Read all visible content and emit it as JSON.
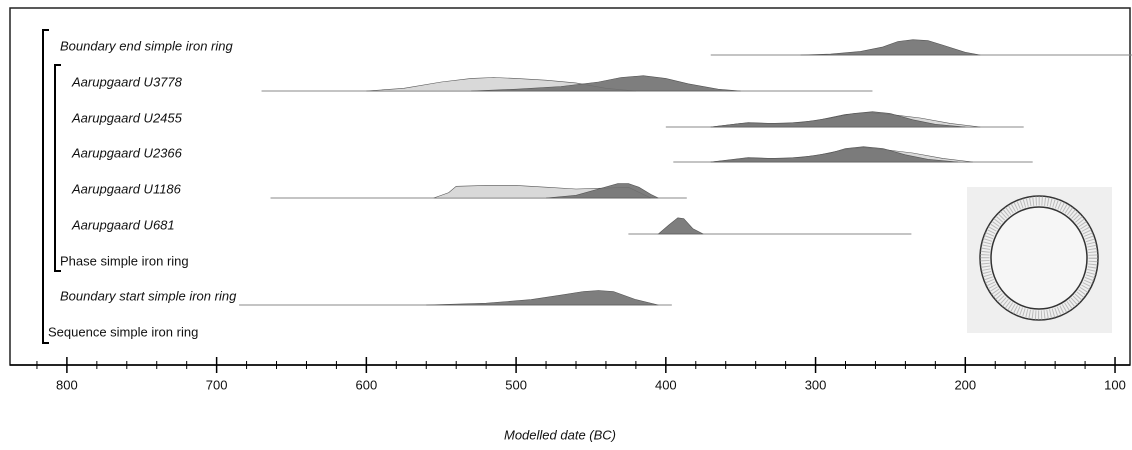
{
  "chart_data": {
    "type": "oxcal",
    "xlabel": "Modelled date (BC)",
    "xlim": [
      838,
      90
    ],
    "xticks": [
      800,
      700,
      600,
      500,
      400,
      300,
      200,
      100
    ],
    "xminorticks": [
      820,
      780,
      760,
      740,
      720,
      680,
      660,
      640,
      620,
      580,
      560,
      540,
      520,
      480,
      460,
      440,
      420,
      380,
      360,
      340,
      320,
      280,
      260,
      240,
      220,
      180,
      160,
      140,
      120
    ],
    "prior_color": "#d9d9d9",
    "posterior_color": "#707070",
    "sequence_label": "Sequence simple iron ring",
    "phase_label": "Phase simple iron ring",
    "rows": [
      {
        "label": "Boundary end simple iron ring",
        "range": [
          370,
          88
        ],
        "posterior": {
          "x": [
            310,
            290,
            270,
            255,
            245,
            235,
            225,
            215,
            200,
            190
          ],
          "y": [
            0,
            0.05,
            0.2,
            0.45,
            0.75,
            0.85,
            0.8,
            0.55,
            0.15,
            0
          ]
        }
      },
      {
        "label": "Aarupgaard U3778",
        "range": [
          670,
          262
        ],
        "prior": {
          "x": [
            600,
            575,
            550,
            530,
            515,
            500,
            480,
            460,
            440,
            420
          ],
          "y": [
            0,
            0.15,
            0.5,
            0.7,
            0.75,
            0.7,
            0.6,
            0.45,
            0.15,
            0
          ]
        },
        "posterior": {
          "x": [
            530,
            500,
            470,
            445,
            430,
            415,
            400,
            385,
            365,
            350
          ],
          "y": [
            0,
            0.1,
            0.25,
            0.5,
            0.75,
            0.85,
            0.7,
            0.4,
            0.1,
            0
          ]
        }
      },
      {
        "label": "Aarupgaard U2455",
        "range": [
          400,
          161
        ],
        "prior": {
          "x": [
            370,
            350,
            340,
            320,
            300,
            280,
            265,
            250,
            230,
            210,
            190
          ],
          "y": [
            0,
            0.2,
            0.2,
            0.2,
            0.35,
            0.7,
            0.8,
            0.7,
            0.5,
            0.2,
            0
          ]
        },
        "posterior": {
          "x": [
            370,
            345,
            330,
            310,
            290,
            275,
            262,
            250,
            235,
            220,
            200
          ],
          "y": [
            0,
            0.25,
            0.2,
            0.25,
            0.5,
            0.75,
            0.85,
            0.75,
            0.4,
            0.15,
            0
          ]
        }
      },
      {
        "label": "Aarupgaard U2366",
        "range": [
          395,
          155
        ],
        "prior": {
          "x": [
            370,
            345,
            335,
            320,
            300,
            280,
            268,
            255,
            235,
            215,
            195
          ],
          "y": [
            0,
            0.2,
            0.2,
            0.2,
            0.35,
            0.7,
            0.8,
            0.7,
            0.5,
            0.2,
            0
          ]
        },
        "posterior": {
          "x": [
            370,
            345,
            330,
            310,
            290,
            280,
            268,
            255,
            240,
            225,
            205
          ],
          "y": [
            0,
            0.25,
            0.2,
            0.25,
            0.5,
            0.75,
            0.85,
            0.75,
            0.4,
            0.15,
            0
          ]
        }
      },
      {
        "label": "Aarupgaard U1186",
        "range": [
          664,
          386
        ],
        "prior": {
          "x": [
            555,
            545,
            540,
            520,
            500,
            480,
            460,
            440,
            425,
            410
          ],
          "y": [
            0,
            0.3,
            0.65,
            0.7,
            0.7,
            0.6,
            0.5,
            0.55,
            0.6,
            0
          ]
        },
        "posterior": {
          "x": [
            480,
            460,
            445,
            432,
            425,
            418,
            410,
            405
          ],
          "y": [
            0,
            0.15,
            0.5,
            0.8,
            0.8,
            0.6,
            0.2,
            0
          ]
        }
      },
      {
        "label": "Aarupgaard U681",
        "range": [
          425,
          236
        ],
        "posterior": {
          "x": [
            405,
            398,
            392,
            388,
            382,
            375
          ],
          "y": [
            0,
            0.5,
            0.9,
            0.85,
            0.3,
            0
          ]
        }
      },
      {
        "label": "Boundary start simple iron ring",
        "range": [
          685,
          396
        ],
        "posterior": {
          "x": [
            560,
            520,
            490,
            470,
            455,
            445,
            435,
            420,
            405
          ],
          "y": [
            0,
            0.1,
            0.3,
            0.55,
            0.75,
            0.8,
            0.75,
            0.3,
            0
          ]
        }
      }
    ]
  }
}
